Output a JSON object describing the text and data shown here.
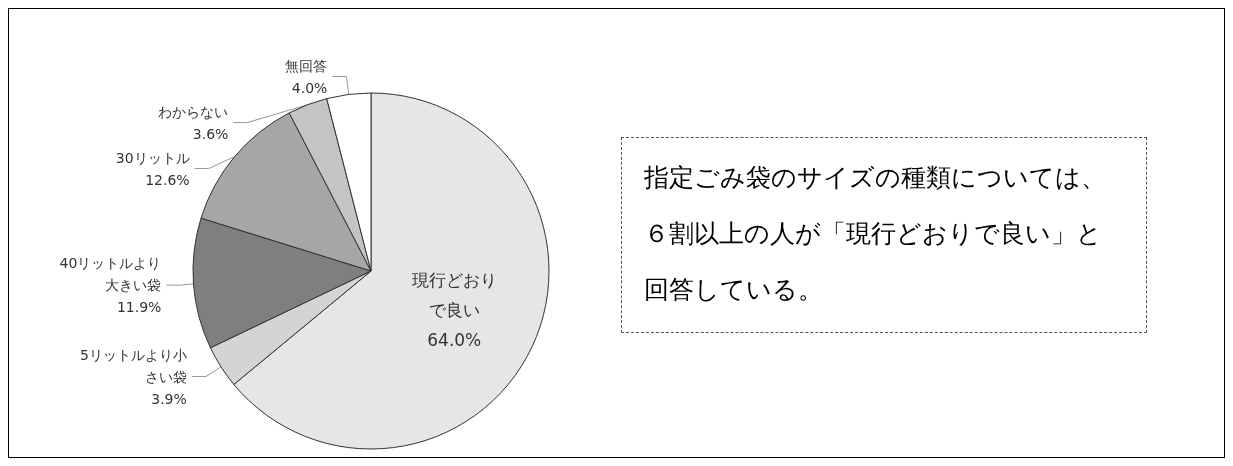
{
  "chart_data": {
    "type": "pie",
    "categories": [
      "現行どおりで良い",
      "5リットルより小さい袋",
      "40リットルより大きい袋",
      "30リットル",
      "わからない",
      "無回答"
    ],
    "values": [
      64.0,
      3.9,
      11.9,
      12.6,
      3.6,
      4.0
    ],
    "value_labels": [
      "64.0%",
      "3.9%",
      "11.9%",
      "12.6%",
      "3.6%",
      "4.0%"
    ],
    "colors": [
      "#e6e6e6",
      "#d4d4d4",
      "#7f7f7f",
      "#a6a6a6",
      "#c4c4c4",
      "#ffffff"
    ],
    "annotations": [
      "指定ごみ袋のサイズの種類については、６割以上の人が「現行どおりで良い」と回答している。"
    ],
    "legend": false
  }
}
